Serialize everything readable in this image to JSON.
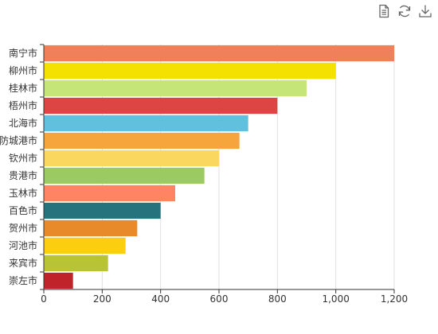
{
  "toolbox": {
    "items": [
      {
        "name": "data-view-icon",
        "title": "数据视图"
      },
      {
        "name": "restore-icon",
        "title": "还原"
      },
      {
        "name": "save-image-icon",
        "title": "保存为图片"
      }
    ],
    "icon_color": "#666666"
  },
  "chart_data": {
    "type": "bar",
    "orientation": "horizontal",
    "title": "",
    "xlabel": "",
    "ylabel": "",
    "xlim": [
      0,
      1200
    ],
    "x_ticks": [
      0,
      200,
      400,
      600,
      800,
      1000,
      1200
    ],
    "x_tick_labels": [
      "0",
      "200",
      "400",
      "600",
      "800",
      "1,000",
      "1,200"
    ],
    "grid": {
      "vertical": true,
      "horizontal": false,
      "color": "#e0e0e0"
    },
    "legend": "none",
    "categories": [
      "南宁市",
      "柳州市",
      "桂林市",
      "梧州市",
      "北海市",
      "防城港市",
      "钦州市",
      "贵港市",
      "玉林市",
      "百色市",
      "贺州市",
      "河池市",
      "来宾市",
      "崇左市"
    ],
    "values": [
      1200,
      1000,
      900,
      800,
      700,
      670,
      600,
      550,
      450,
      400,
      320,
      280,
      220,
      100
    ],
    "colors": [
      "#F0805A",
      "#F4E001",
      "#C6E579",
      "#DD4444",
      "#60C0DD",
      "#F6A53D",
      "#FAD860",
      "#9BCA63",
      "#FF8463",
      "#26737E",
      "#E98A2A",
      "#FCCE10",
      "#B8C336",
      "#C1232B"
    ]
  }
}
